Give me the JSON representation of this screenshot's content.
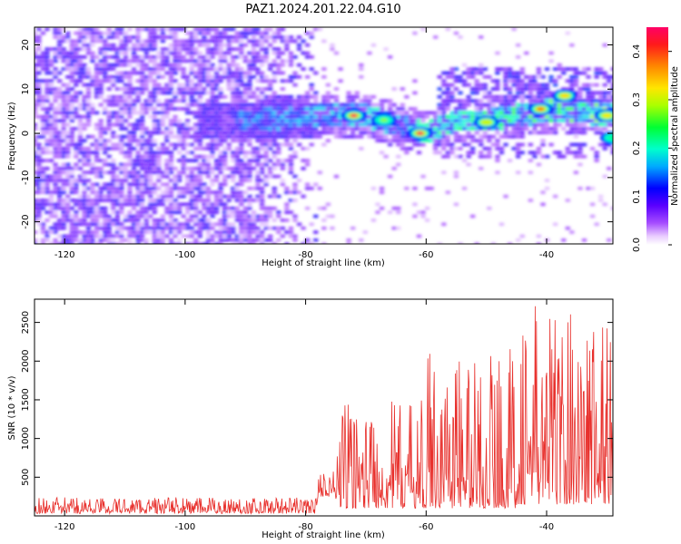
{
  "title": "PAZ1.2024.201.22.04.G10",
  "chart_data": [
    {
      "type": "heatmap",
      "xlabel": "Height of straight line (km)",
      "ylabel": "Frequency (Hz)",
      "xlim": [
        -125,
        -29
      ],
      "ylim": [
        -25,
        24
      ],
      "xticks": [
        -120,
        -100,
        -80,
        -60,
        -40
      ],
      "yticks": [
        -20,
        -10,
        0,
        10,
        20
      ],
      "colorbar": {
        "label": "Normalized spectral amplitude",
        "range": [
          0.0,
          0.45
        ],
        "ticks": [
          0.0,
          0.1,
          0.2,
          0.3,
          0.4
        ],
        "colormap": "gist_rainbow_r"
      },
      "ridge": {
        "description_points_x": [
          -88,
          -80,
          -75,
          -70,
          -65,
          -60,
          -55,
          -50,
          -45,
          -40,
          -35,
          -30
        ],
        "description_points_y": [
          3,
          4,
          4,
          4,
          2,
          0,
          3,
          3,
          4,
          5,
          5,
          4
        ]
      },
      "hotspots": [
        {
          "x": -72,
          "y": 4,
          "value": 0.45
        },
        {
          "x": -61,
          "y": 0,
          "value": 0.45
        },
        {
          "x": -41,
          "y": 5.5,
          "value": 0.38
        },
        {
          "x": -37,
          "y": 8.5,
          "value": 0.33
        },
        {
          "x": -30,
          "y": 4,
          "value": 0.32
        },
        {
          "x": -50,
          "y": 2.5,
          "value": 0.3
        },
        {
          "x": -67,
          "y": 3,
          "value": 0.28
        },
        {
          "x": -29,
          "y": -1,
          "value": 0.22
        }
      ]
    },
    {
      "type": "line",
      "xlabel": "Height of straight line (km)",
      "ylabel": "SNR (10 * v/v)",
      "xlim": [
        -125,
        -29
      ],
      "ylim": [
        0,
        2800
      ],
      "xticks": [
        -120,
        -100,
        -80,
        -60,
        -40
      ],
      "yticks": [
        500,
        1000,
        1500,
        2000,
        2500
      ],
      "series": [
        {
          "color": "#e8302c",
          "envelope": [
            {
              "x_from": -125,
              "x_to": -78,
              "low": 30,
              "high": 240
            },
            {
              "x_from": -78,
              "x_to": -75,
              "low": 250,
              "high": 600
            },
            {
              "x_from": -75,
              "x_to": -60,
              "low": 100,
              "high": 1500
            },
            {
              "x_from": -60,
              "x_to": -45,
              "low": 100,
              "high": 2200
            },
            {
              "x_from": -45,
              "x_to": -29,
              "low": 150,
              "high": 2800
            }
          ]
        }
      ]
    }
  ]
}
